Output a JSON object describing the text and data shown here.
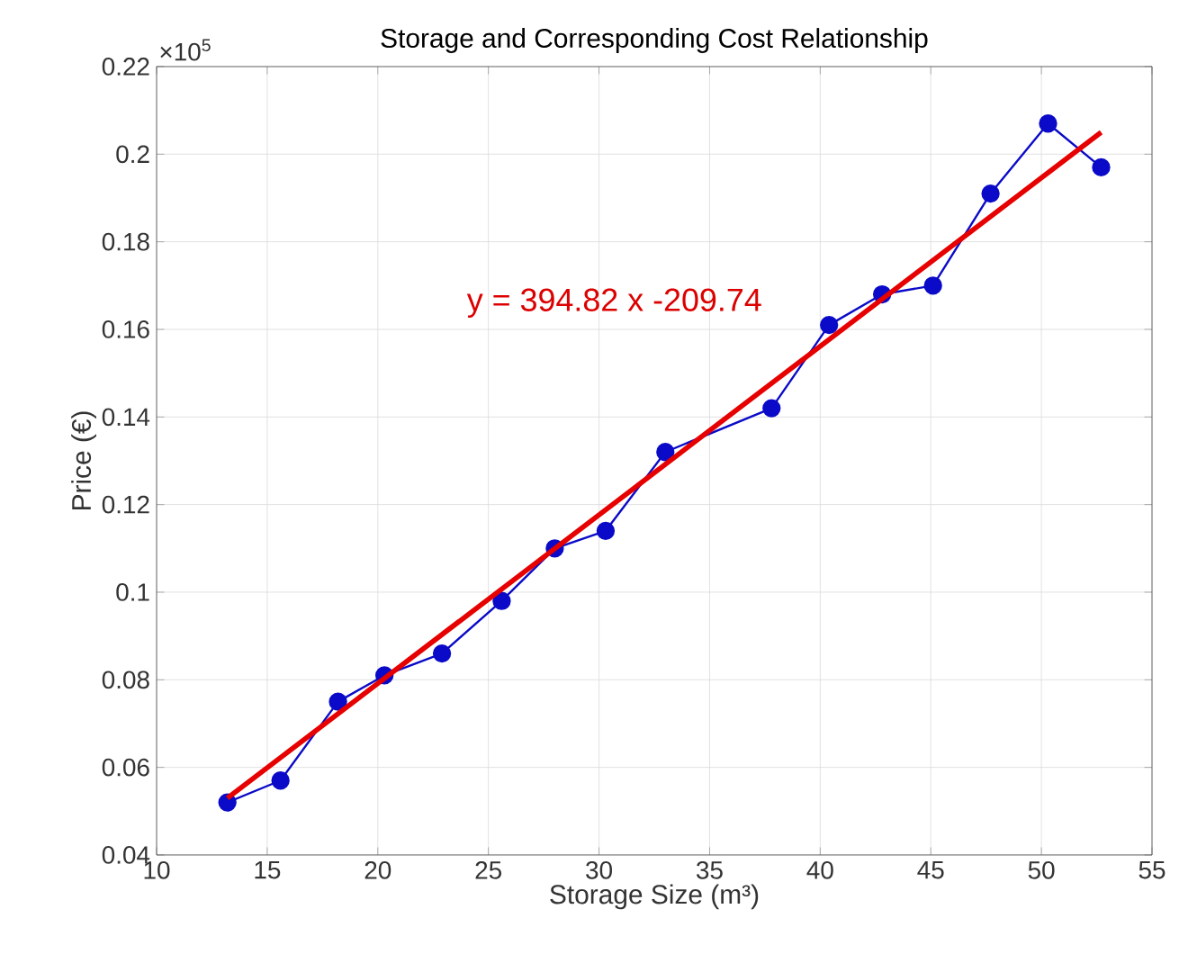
{
  "chart_data": {
    "type": "line",
    "title": "Storage and Corresponding Cost Relationship",
    "xlabel": "Storage Size (m³)",
    "ylabel": "Price (€)",
    "annotations": [
      "×10$^{5}$",
      "y = 394.82 x -209.74"
    ],
    "xlim": [
      10,
      55
    ],
    "xticks": [
      10,
      15,
      20,
      25,
      30,
      35,
      40,
      45,
      50,
      55
    ],
    "ylim": [
      0.04,
      0.22
    ],
    "yticks": [
      0.04,
      0.06,
      0.08,
      0.1,
      0.12,
      0.14,
      0.16,
      0.18,
      0.2,
      0.22
    ],
    "grid": true,
    "series": [
      {
        "color": "#0a0ac8",
        "marker": "circle",
        "x": [
          13.2,
          15.6,
          18.2,
          20.3,
          22.9,
          25.6,
          28.0,
          30.3,
          33.0,
          37.8,
          40.4,
          42.8,
          45.1,
          47.7,
          50.3,
          52.7
        ],
        "values": [
          0.052,
          0.057,
          0.075,
          0.081,
          0.086,
          0.098,
          0.11,
          0.114,
          0.132,
          0.142,
          0.161,
          0.168,
          0.17,
          0.191,
          0.207,
          0.197
        ]
      },
      {
        "color": "#e60000",
        "marker": "none",
        "x": [
          13.2,
          52.7
        ],
        "values": [
          0.053,
          0.205
        ]
      }
    ]
  }
}
